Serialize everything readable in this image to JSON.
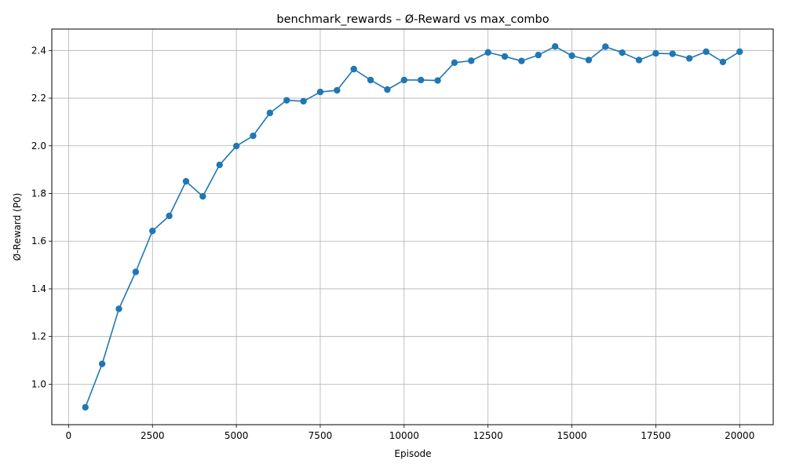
{
  "chart_data": {
    "type": "line",
    "title": "benchmark_rewards – Ø-Reward vs max_combo",
    "xlabel": "Episode",
    "ylabel": "Ø-Reward (P0)",
    "xlim": [
      -500,
      21000
    ],
    "ylim": [
      0.83,
      2.49
    ],
    "xticks": [
      0,
      2500,
      5000,
      7500,
      10000,
      12500,
      15000,
      17500,
      20000
    ],
    "yticks": [
      1.0,
      1.2,
      1.4,
      1.6,
      1.8,
      2.0,
      2.2,
      2.4
    ],
    "grid": true,
    "marker": "circle",
    "color": "#1f77b4",
    "series": [
      {
        "x": [
          500,
          1000,
          1500,
          2000,
          2500,
          3000,
          3500,
          4000,
          4500,
          5000,
          5500,
          6000,
          6500,
          7000,
          7500,
          8000,
          8500,
          9000,
          9500,
          10000,
          10500,
          11000,
          11500,
          12000,
          12500,
          13000,
          13500,
          14000,
          14500,
          15000,
          15500,
          16000,
          16500,
          17000,
          17500,
          18000,
          18500,
          19000,
          19500,
          20000
        ],
        "y": [
          0.903,
          1.085,
          1.316,
          1.471,
          1.643,
          1.706,
          1.851,
          1.788,
          1.92,
          1.999,
          2.042,
          2.138,
          2.191,
          2.187,
          2.226,
          2.233,
          2.322,
          2.276,
          2.236,
          2.276,
          2.276,
          2.274,
          2.349,
          2.357,
          2.392,
          2.375,
          2.356,
          2.381,
          2.417,
          2.378,
          2.36,
          2.416,
          2.391,
          2.36,
          2.388,
          2.386,
          2.367,
          2.395,
          2.352,
          2.395
        ]
      }
    ]
  }
}
